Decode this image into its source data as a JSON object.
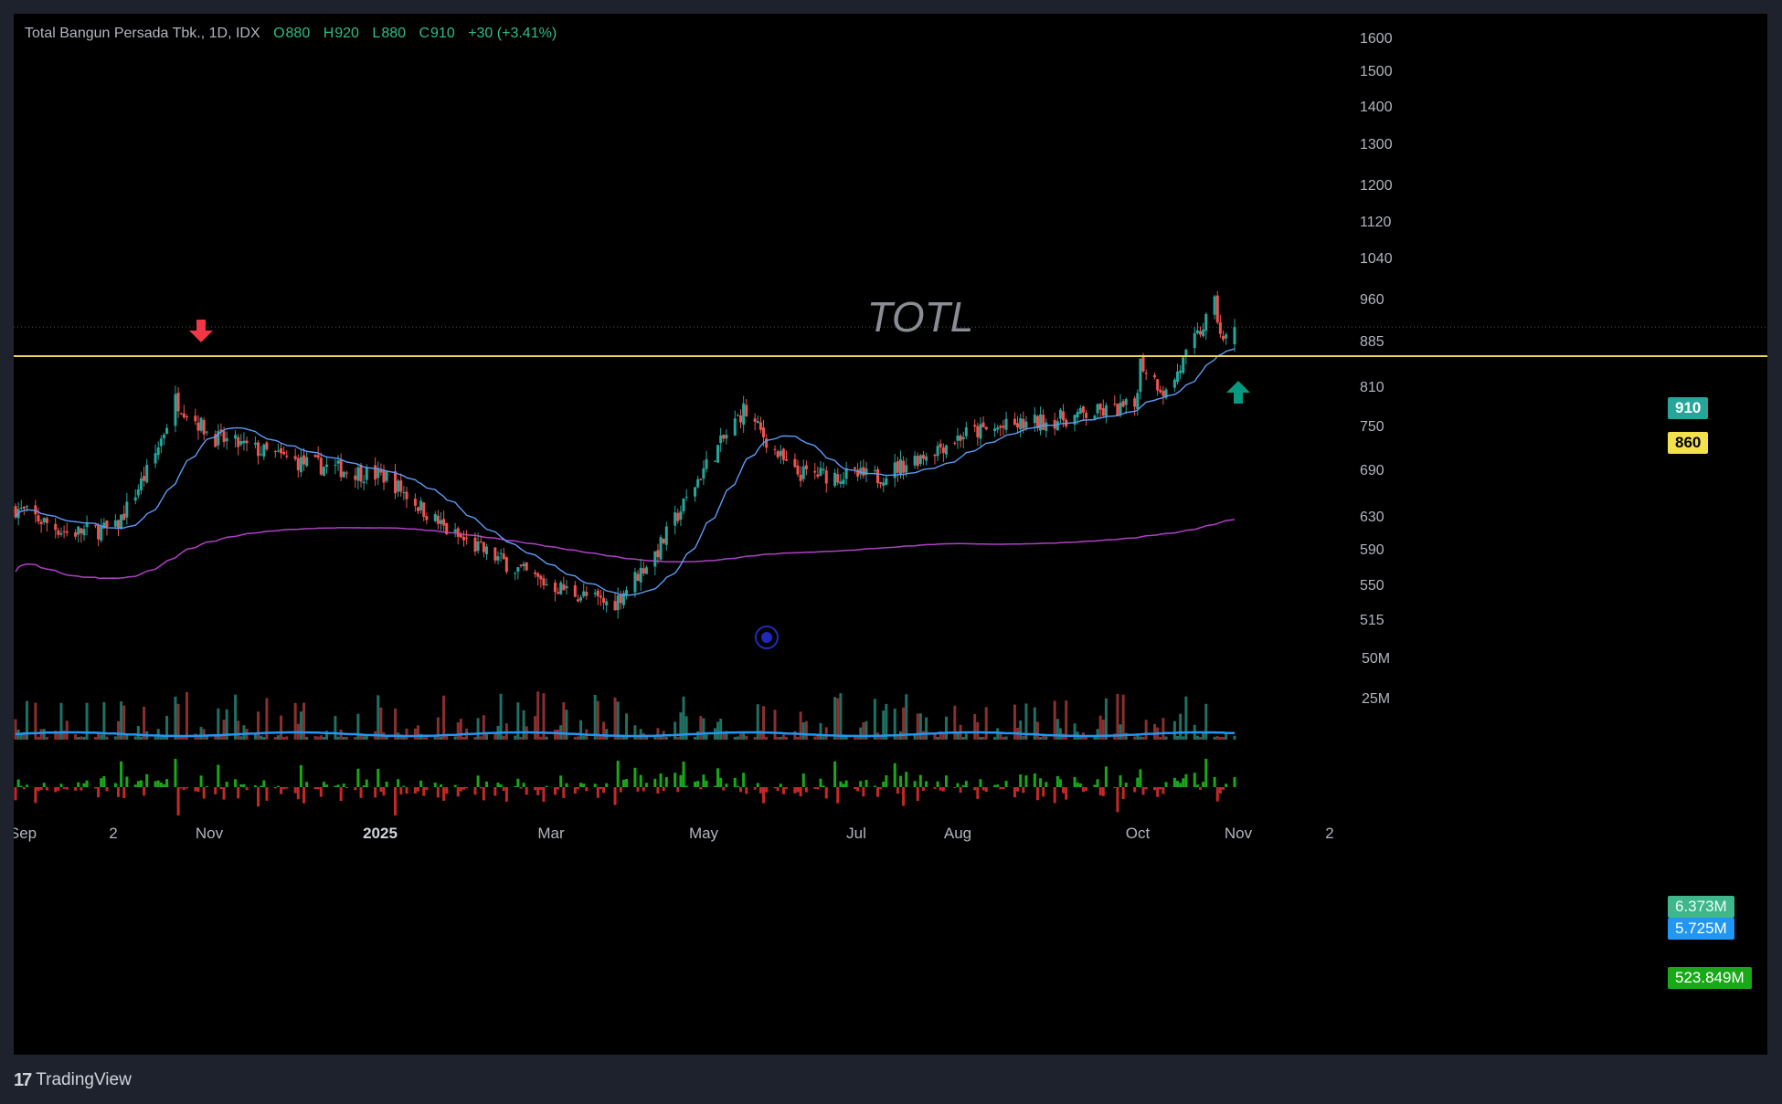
{
  "legend": {
    "symbol_name": "Total Bangun Persada Tbk., 1D, IDX",
    "open_label": "O",
    "open": "880",
    "high_label": "H",
    "high": "920",
    "low_label": "L",
    "low": "880",
    "close_label": "C",
    "close": "910",
    "change": "+30 (+3.41%)"
  },
  "watermark": "TOTL",
  "footer": {
    "brand": "TradingView",
    "logo_glyph": "17"
  },
  "colors": {
    "up": "#26a69a",
    "down": "#ef5350",
    "ma_fast": "#5b9cf6",
    "ma_slow": "#b040c8",
    "level": "#e8d44d",
    "vol_ma": "#2196f3",
    "net_up": "#18a818",
    "net_down": "#c62828"
  },
  "chart_data": {
    "type": "candlestick",
    "scale": "log",
    "price_ticks": [
      515,
      550,
      590,
      630,
      690,
      750,
      810,
      885,
      960,
      1040,
      1120,
      1200,
      1300,
      1400,
      1500,
      1600
    ],
    "last_price": 910,
    "horizontal_level": 860,
    "x_labels": [
      "Sep",
      "2",
      "Nov",
      "2025",
      "Mar",
      "May",
      "Jul",
      "Aug",
      "Oct",
      "Nov",
      "2"
    ],
    "volume_ticks": [
      "50M",
      "25M"
    ],
    "volume_badges": {
      "volume": "6.373M",
      "volume_ma": "5.725M"
    },
    "net_badge": "523.849M",
    "annotations": [
      "sell arrow near Nov 2024 high",
      "buy arrow at latest bar",
      "circle marker near May 2025"
    ],
    "price_path_points": [
      {
        "date": "2024-09-02",
        "close": 640
      },
      {
        "date": "2024-09-20",
        "close": 610
      },
      {
        "date": "2024-10-07",
        "close": 615
      },
      {
        "date": "2024-10-20",
        "close": 700
      },
      {
        "date": "2024-10-28",
        "close": 790
      },
      {
        "date": "2024-11-10",
        "close": 735
      },
      {
        "date": "2024-12-10",
        "close": 700
      },
      {
        "date": "2025-01-10",
        "close": 680
      },
      {
        "date": "2025-02-01",
        "close": 610
      },
      {
        "date": "2025-03-05",
        "close": 555
      },
      {
        "date": "2025-03-30",
        "close": 530
      },
      {
        "date": "2025-04-15",
        "close": 590
      },
      {
        "date": "2025-05-01",
        "close": 690
      },
      {
        "date": "2025-05-15",
        "close": 775
      },
      {
        "date": "2025-06-01",
        "close": 685
      },
      {
        "date": "2025-07-01",
        "close": 680
      },
      {
        "date": "2025-08-01",
        "close": 740
      },
      {
        "date": "2025-09-01",
        "close": 760
      },
      {
        "date": "2025-09-29",
        "close": 780
      },
      {
        "date": "2025-10-01",
        "close": 850
      },
      {
        "date": "2025-10-10",
        "close": 800
      },
      {
        "date": "2025-10-27",
        "close": 950
      },
      {
        "date": "2025-10-30",
        "close": 880
      },
      {
        "date": "2025-11-03",
        "close": 910
      }
    ]
  }
}
